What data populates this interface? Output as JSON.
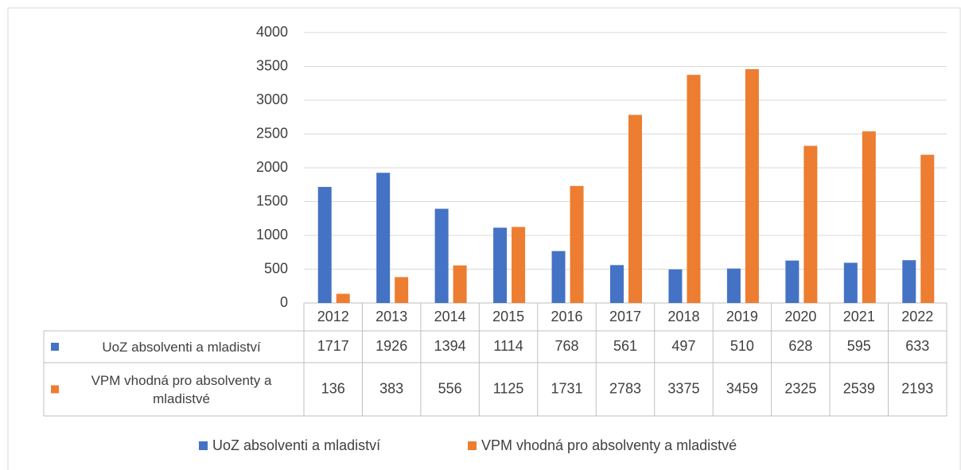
{
  "chart_data": {
    "type": "bar",
    "categories": [
      "2012",
      "2013",
      "2014",
      "2015",
      "2016",
      "2017",
      "2018",
      "2019",
      "2020",
      "2021",
      "2022"
    ],
    "series": [
      {
        "name": "UoZ absolventi a mladiství",
        "color": "#4472c4",
        "values": [
          1717,
          1926,
          1394,
          1114,
          768,
          561,
          497,
          510,
          628,
          595,
          633
        ]
      },
      {
        "name": "VPM vhodná pro absolventy a mladistvé",
        "color": "#ed7d31",
        "values": [
          136,
          383,
          556,
          1125,
          1731,
          2783,
          3375,
          3459,
          2325,
          2539,
          2193
        ]
      }
    ],
    "ylim": [
      0,
      4000
    ],
    "yticks": [
      0,
      500,
      1000,
      1500,
      2000,
      2500,
      3000,
      3500,
      4000
    ],
    "grid": true,
    "legend": "bottom"
  }
}
